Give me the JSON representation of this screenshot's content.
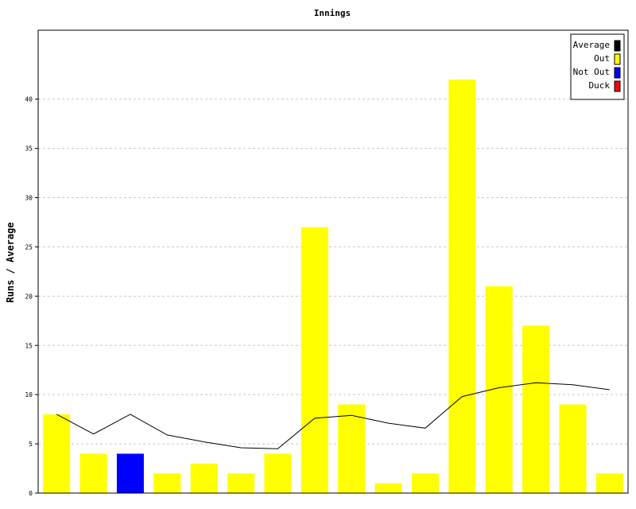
{
  "chart_data": {
    "type": "bar",
    "title": "Innings",
    "xlabel": "",
    "ylabel": "Runs / Average",
    "ylim": [
      0,
      47
    ],
    "yticks": [
      0,
      5,
      10,
      15,
      20,
      25,
      30,
      35,
      40
    ],
    "grid": true,
    "legend_position": "top-right",
    "legend": [
      {
        "label": "Average",
        "color": "#000000"
      },
      {
        "label": "Out",
        "color": "#ffff00"
      },
      {
        "label": "Not Out",
        "color": "#0000ff"
      },
      {
        "label": "Duck",
        "color": "#ff0000"
      }
    ],
    "innings": [
      {
        "runs": 8,
        "status": "Out"
      },
      {
        "runs": 4,
        "status": "Out"
      },
      {
        "runs": 4,
        "status": "Not Out"
      },
      {
        "runs": 2,
        "status": "Out"
      },
      {
        "runs": 3,
        "status": "Out"
      },
      {
        "runs": 2,
        "status": "Out"
      },
      {
        "runs": 4,
        "status": "Out"
      },
      {
        "runs": 27,
        "status": "Out"
      },
      {
        "runs": 9,
        "status": "Out"
      },
      {
        "runs": 1,
        "status": "Out"
      },
      {
        "runs": 2,
        "status": "Out"
      },
      {
        "runs": 42,
        "status": "Out"
      },
      {
        "runs": 21,
        "status": "Out"
      },
      {
        "runs": 17,
        "status": "Out"
      },
      {
        "runs": 9,
        "status": "Out"
      },
      {
        "runs": 2,
        "status": "Out"
      }
    ],
    "average": [
      8,
      6,
      8,
      5.9,
      5.2,
      4.6,
      4.5,
      7.6,
      7.9,
      7.1,
      6.6,
      9.8,
      10.7,
      11.2,
      11.0,
      10.5
    ]
  }
}
